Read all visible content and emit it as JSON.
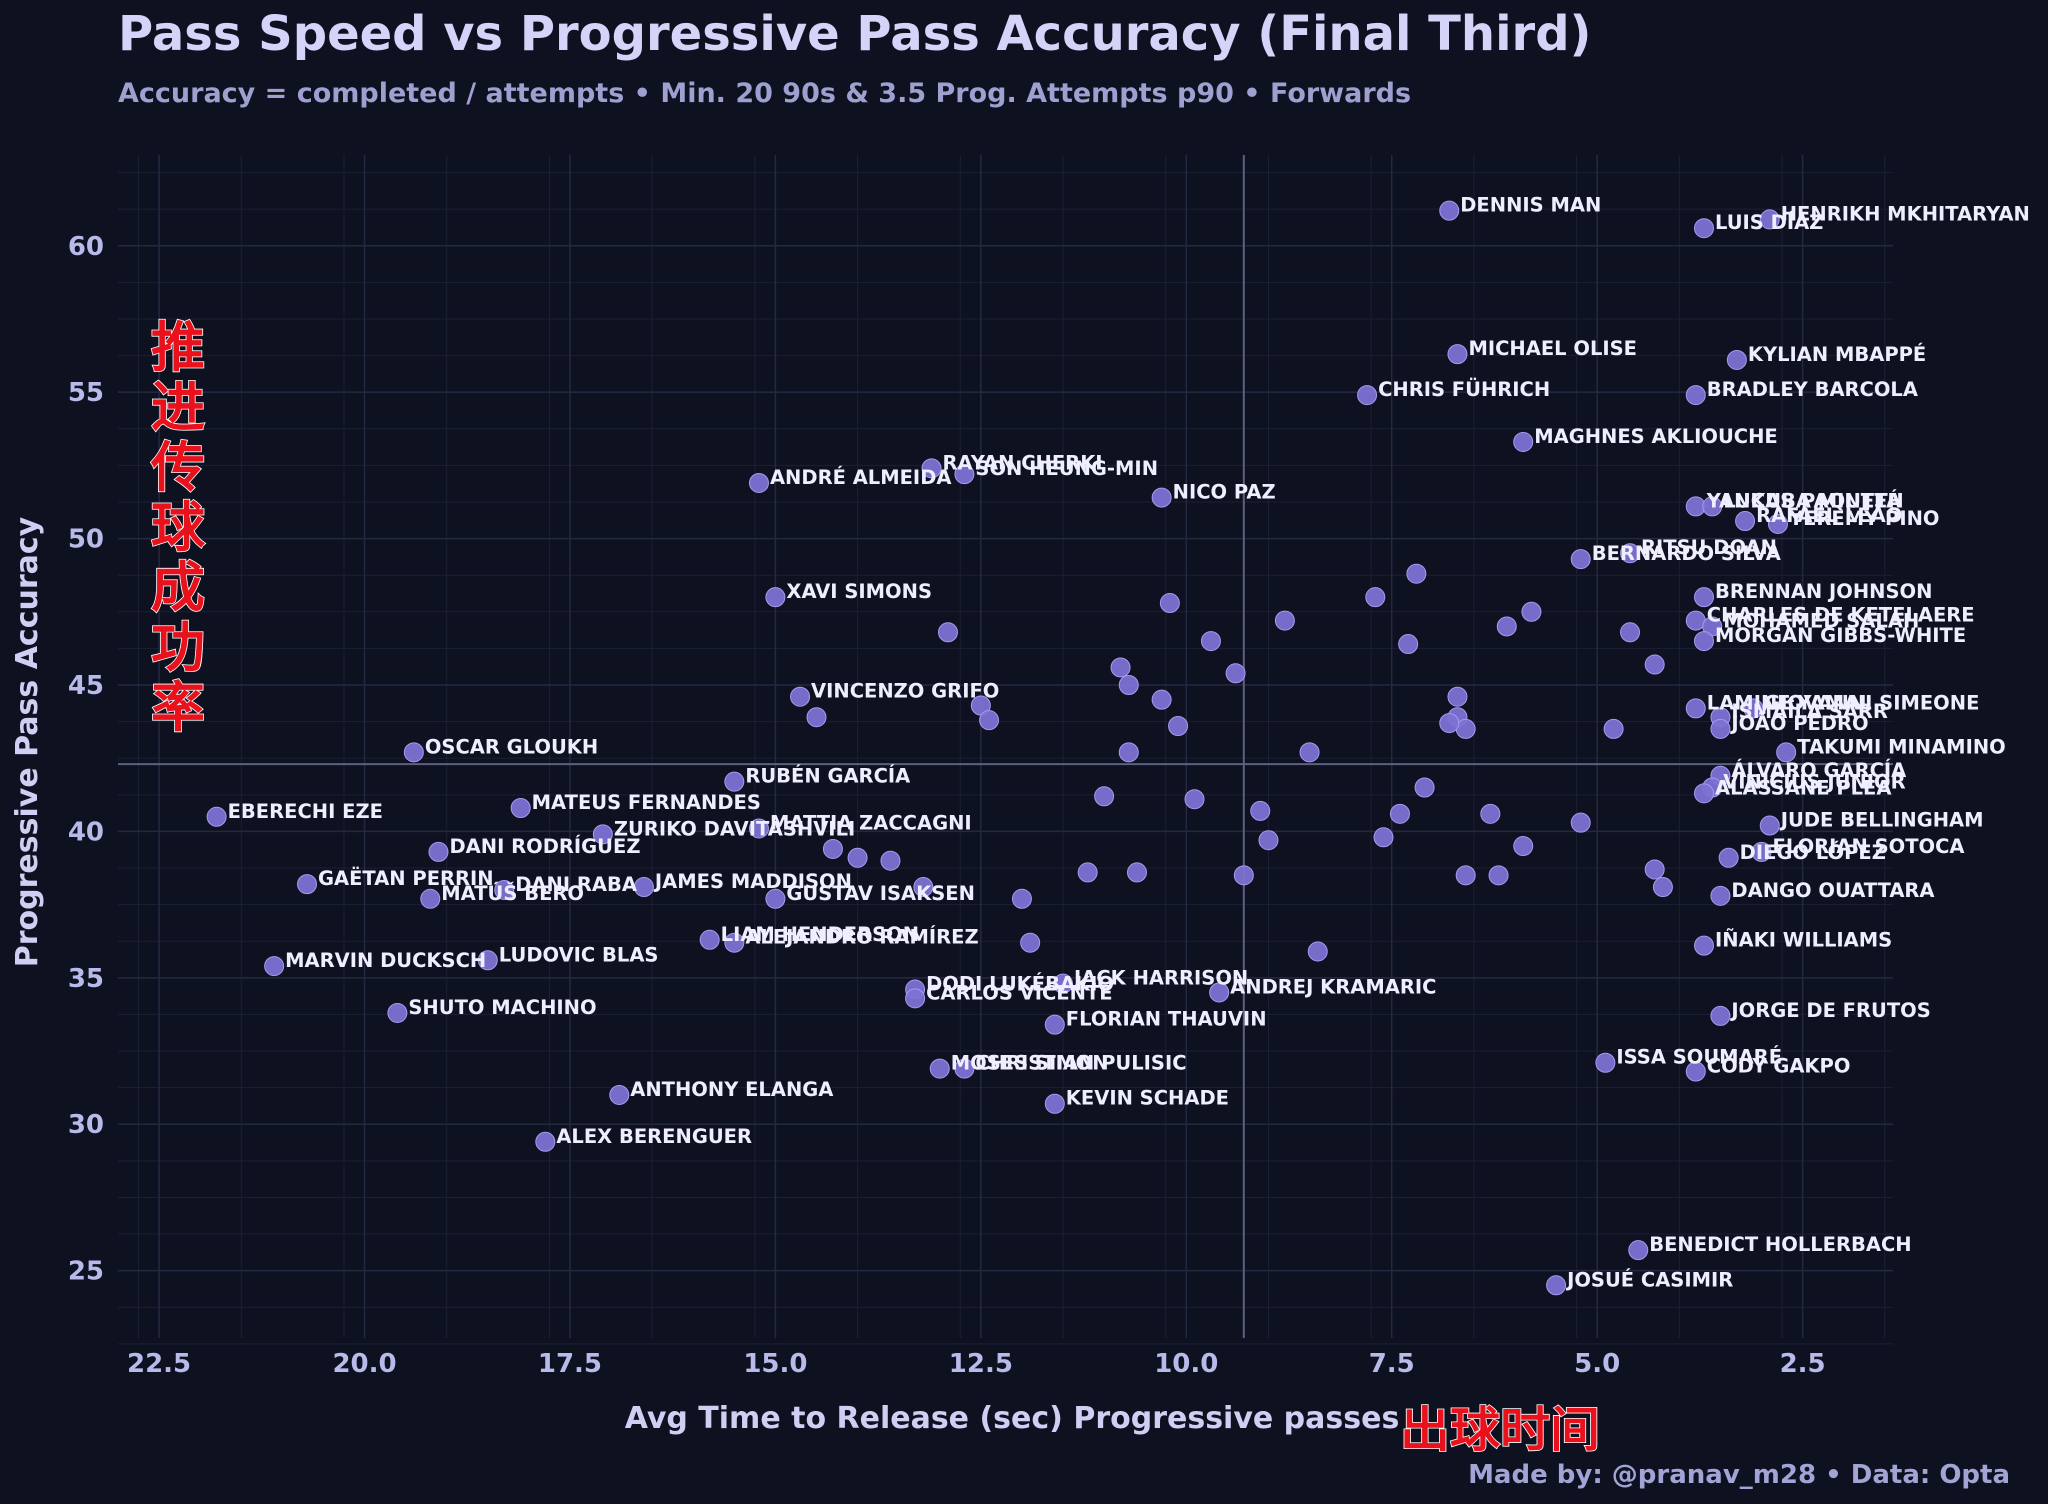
{
  "title": "Pass Speed vs Progressive Pass Accuracy (Final Third)",
  "subtitle": "Accuracy = completed / attempts • Min. 20 90s & 3.5 Prog. Attempts p90 • Forwards",
  "credit": "Made by: @pranav_m28  •  Data: Opta",
  "annotation_y": "推进传球成功率",
  "annotation_x": "出球时间",
  "colors": {
    "background": "#0e1120",
    "point": "#7d72d4",
    "reference_line": "#5d6180",
    "annotation": "#e8111c"
  },
  "chart_data": {
    "type": "scatter",
    "xlabel": "Avg Time to Release (sec) Progressive passes",
    "ylabel": "Progressive Pass Accuracy",
    "x_inverted": true,
    "xlim": [
      23.0,
      1.4
    ],
    "ylim": [
      22.7,
      63.1
    ],
    "xticks": [
      22.5,
      20.0,
      17.5,
      15.0,
      12.5,
      10.0,
      7.5,
      5.0,
      2.5
    ],
    "yticks": [
      25,
      30,
      35,
      40,
      45,
      50,
      55,
      60
    ],
    "xtick_labels": [
      "22.5",
      "20.0",
      "17.5",
      "15.0",
      "12.5",
      "10.0",
      "7.5",
      "5.0",
      "2.5"
    ],
    "ytick_labels": [
      "25",
      "30",
      "35",
      "40",
      "45",
      "50",
      "55",
      "60"
    ],
    "reference_lines": {
      "x": 9.3,
      "y": 42.3
    },
    "grid": true,
    "points": [
      {
        "x": 6.8,
        "y": 61.2,
        "label": "DENNIS MAN"
      },
      {
        "x": 2.9,
        "y": 60.9,
        "label": "HENRIKH MKHITARYAN"
      },
      {
        "x": 3.7,
        "y": 60.6,
        "label": "LUIS DÍAZ"
      },
      {
        "x": 6.7,
        "y": 56.3,
        "label": "MICHAEL OLISE"
      },
      {
        "x": 3.3,
        "y": 56.1,
        "label": "KYLIAN MBAPPÉ"
      },
      {
        "x": 7.8,
        "y": 54.9,
        "label": "CHRIS FÜHRICH"
      },
      {
        "x": 3.8,
        "y": 54.9,
        "label": "BRADLEY BARCOLA"
      },
      {
        "x": 5.9,
        "y": 53.3,
        "label": "MAGHNES AKLIOUCHE"
      },
      {
        "x": 13.1,
        "y": 52.4,
        "label": "RAYAN CHERKI"
      },
      {
        "x": 12.7,
        "y": 52.2,
        "label": "SON HEUNG-MIN"
      },
      {
        "x": 15.2,
        "y": 51.9,
        "label": "ANDRÉ ALMEIDA"
      },
      {
        "x": 10.3,
        "y": 51.4,
        "label": "NICO PAZ"
      },
      {
        "x": 3.8,
        "y": 51.1,
        "label": "YANKUBA MINTEH"
      },
      {
        "x": 3.6,
        "y": 51.1,
        "label": "LUCAS PAQUETÁ"
      },
      {
        "x": 3.2,
        "y": 50.6,
        "label": "RAFAEL LEÃO"
      },
      {
        "x": 2.8,
        "y": 50.5,
        "label": "YEREMY PINO"
      },
      {
        "x": 4.6,
        "y": 49.5,
        "label": "RITSU DOAN"
      },
      {
        "x": 5.2,
        "y": 49.3,
        "label": "BERNARDO SILVA"
      },
      {
        "x": 15.0,
        "y": 48.0,
        "label": "XAVI SIMONS"
      },
      {
        "x": 3.7,
        "y": 48.0,
        "label": "BRENNAN JOHNSON"
      },
      {
        "x": 3.8,
        "y": 47.2,
        "label": "CHARLES DE KETELAERE"
      },
      {
        "x": 3.6,
        "y": 47.0,
        "label": "MOHAMED SALAH"
      },
      {
        "x": 3.7,
        "y": 46.5,
        "label": "MORGAN GIBBS-WHITE"
      },
      {
        "x": 14.7,
        "y": 44.6,
        "label": "VINCENZO GRIFO"
      },
      {
        "x": 3.8,
        "y": 44.2,
        "label": "LAMINE YAMAL"
      },
      {
        "x": 3.1,
        "y": 44.2,
        "label": "GIOVANNI SIMEONE"
      },
      {
        "x": 3.5,
        "y": 43.9,
        "label": "ISMAÏLA SARR"
      },
      {
        "x": 3.5,
        "y": 43.5,
        "label": "JOÃO PEDRO"
      },
      {
        "x": 2.7,
        "y": 42.7,
        "label": "TAKUMI MINAMINO"
      },
      {
        "x": 19.4,
        "y": 42.7,
        "label": "OSCAR GLOUKH"
      },
      {
        "x": 3.5,
        "y": 41.9,
        "label": "ÁLVARO GARCÍA"
      },
      {
        "x": 3.6,
        "y": 41.5,
        "label": "VINÍCIUS JÚNIOR"
      },
      {
        "x": 3.7,
        "y": 41.3,
        "label": "ALASSANE PLÉA"
      },
      {
        "x": 15.5,
        "y": 41.7,
        "label": "RUBÉN GARCÍA"
      },
      {
        "x": 18.1,
        "y": 40.8,
        "label": "MATEUS FERNANDES"
      },
      {
        "x": 21.8,
        "y": 40.5,
        "label": "EBERECHI EZE"
      },
      {
        "x": 15.2,
        "y": 40.1,
        "label": "MATTIA ZACCAGNI"
      },
      {
        "x": 17.1,
        "y": 39.9,
        "label": "ZURIKO DAVITASHVILI"
      },
      {
        "x": 2.9,
        "y": 40.2,
        "label": "JUDE BELLINGHAM"
      },
      {
        "x": 19.1,
        "y": 39.3,
        "label": "DANI RODRÍGUEZ"
      },
      {
        "x": 3.0,
        "y": 39.3,
        "label": "FLORIAN SOTOCA"
      },
      {
        "x": 3.4,
        "y": 39.1,
        "label": "DIEGO LÓPEZ"
      },
      {
        "x": 20.7,
        "y": 38.2,
        "label": "GAËTAN PERRIN"
      },
      {
        "x": 18.3,
        "y": 38.0,
        "label": "DANI RABA"
      },
      {
        "x": 16.6,
        "y": 38.1,
        "label": "JAMES MADDISON"
      },
      {
        "x": 19.2,
        "y": 37.7,
        "label": "MATÚŠ BERO"
      },
      {
        "x": 15.0,
        "y": 37.7,
        "label": "GUSTAV ISAKSEN"
      },
      {
        "x": 3.5,
        "y": 37.8,
        "label": "DANGO OUATTARA"
      },
      {
        "x": 15.8,
        "y": 36.3,
        "label": "LIAM HENDERSON"
      },
      {
        "x": 15.5,
        "y": 36.2,
        "label": "ALEJANDRO RAMÍREZ"
      },
      {
        "x": 3.7,
        "y": 36.1,
        "label": "IÑAKI WILLIAMS"
      },
      {
        "x": 21.1,
        "y": 35.4,
        "label": "MARVIN DUCKSCH"
      },
      {
        "x": 18.5,
        "y": 35.6,
        "label": "LUDOVIC BLAS"
      },
      {
        "x": 11.5,
        "y": 34.8,
        "label": "JACK HARRISON"
      },
      {
        "x": 13.3,
        "y": 34.6,
        "label": "DODI LUKÉBAKIO"
      },
      {
        "x": 13.3,
        "y": 34.3,
        "label": "CARLOS VICENTE"
      },
      {
        "x": 9.6,
        "y": 34.5,
        "label": "ANDREJ KRAMARIC"
      },
      {
        "x": 19.6,
        "y": 33.8,
        "label": "SHUTO MACHINO"
      },
      {
        "x": 11.6,
        "y": 33.4,
        "label": "FLORIAN THAUVIN"
      },
      {
        "x": 3.5,
        "y": 33.7,
        "label": "JORGE DE FRUTOS"
      },
      {
        "x": 4.9,
        "y": 32.1,
        "label": "ISSA SOUMARÉ"
      },
      {
        "x": 3.8,
        "y": 31.8,
        "label": "CODY GAKPO"
      },
      {
        "x": 13.0,
        "y": 31.9,
        "label": "MOSES SIMON"
      },
      {
        "x": 12.7,
        "y": 31.9,
        "label": "CHRISTIAN PULISIC"
      },
      {
        "x": 16.9,
        "y": 31.0,
        "label": "ANTHONY ELANGA"
      },
      {
        "x": 11.6,
        "y": 30.7,
        "label": "KEVIN SCHADE"
      },
      {
        "x": 17.8,
        "y": 29.4,
        "label": "ALEX BERENGUER"
      },
      {
        "x": 4.5,
        "y": 25.7,
        "label": "BENEDICT HOLLERBACH"
      },
      {
        "x": 5.5,
        "y": 24.5,
        "label": "JOSUÉ CASIMIR"
      },
      {
        "x": 12.9,
        "y": 46.8,
        "label": ""
      },
      {
        "x": 12.5,
        "y": 44.3,
        "label": ""
      },
      {
        "x": 12.4,
        "y": 43.8,
        "label": ""
      },
      {
        "x": 14.5,
        "y": 43.9,
        "label": ""
      },
      {
        "x": 10.2,
        "y": 47.8,
        "label": ""
      },
      {
        "x": 9.7,
        "y": 46.5,
        "label": ""
      },
      {
        "x": 9.4,
        "y": 45.4,
        "label": ""
      },
      {
        "x": 10.8,
        "y": 45.6,
        "label": ""
      },
      {
        "x": 10.7,
        "y": 45.0,
        "label": ""
      },
      {
        "x": 10.3,
        "y": 44.5,
        "label": ""
      },
      {
        "x": 10.1,
        "y": 43.6,
        "label": ""
      },
      {
        "x": 10.7,
        "y": 42.7,
        "label": ""
      },
      {
        "x": 8.5,
        "y": 42.7,
        "label": ""
      },
      {
        "x": 8.8,
        "y": 47.2,
        "label": ""
      },
      {
        "x": 7.7,
        "y": 48.0,
        "label": ""
      },
      {
        "x": 7.2,
        "y": 48.8,
        "label": ""
      },
      {
        "x": 7.3,
        "y": 46.4,
        "label": ""
      },
      {
        "x": 6.1,
        "y": 47.0,
        "label": ""
      },
      {
        "x": 5.8,
        "y": 47.5,
        "label": ""
      },
      {
        "x": 4.6,
        "y": 46.8,
        "label": ""
      },
      {
        "x": 4.3,
        "y": 45.7,
        "label": ""
      },
      {
        "x": 6.7,
        "y": 44.6,
        "label": ""
      },
      {
        "x": 6.7,
        "y": 43.9,
        "label": ""
      },
      {
        "x": 6.6,
        "y": 43.5,
        "label": ""
      },
      {
        "x": 6.8,
        "y": 43.7,
        "label": ""
      },
      {
        "x": 4.8,
        "y": 43.5,
        "label": ""
      },
      {
        "x": 11.0,
        "y": 41.2,
        "label": ""
      },
      {
        "x": 9.9,
        "y": 41.1,
        "label": ""
      },
      {
        "x": 9.1,
        "y": 40.7,
        "label": ""
      },
      {
        "x": 9.0,
        "y": 39.7,
        "label": ""
      },
      {
        "x": 7.1,
        "y": 41.5,
        "label": ""
      },
      {
        "x": 7.4,
        "y": 40.6,
        "label": ""
      },
      {
        "x": 7.6,
        "y": 39.8,
        "label": ""
      },
      {
        "x": 6.3,
        "y": 40.6,
        "label": ""
      },
      {
        "x": 5.9,
        "y": 39.5,
        "label": ""
      },
      {
        "x": 5.2,
        "y": 40.3,
        "label": ""
      },
      {
        "x": 14.3,
        "y": 39.4,
        "label": ""
      },
      {
        "x": 14.0,
        "y": 39.1,
        "label": ""
      },
      {
        "x": 13.6,
        "y": 39.0,
        "label": ""
      },
      {
        "x": 13.2,
        "y": 38.1,
        "label": ""
      },
      {
        "x": 12.0,
        "y": 37.7,
        "label": ""
      },
      {
        "x": 11.9,
        "y": 36.2,
        "label": ""
      },
      {
        "x": 11.2,
        "y": 38.6,
        "label": ""
      },
      {
        "x": 10.6,
        "y": 38.6,
        "label": ""
      },
      {
        "x": 9.3,
        "y": 38.5,
        "label": ""
      },
      {
        "x": 6.6,
        "y": 38.5,
        "label": ""
      },
      {
        "x": 6.2,
        "y": 38.5,
        "label": ""
      },
      {
        "x": 4.3,
        "y": 38.7,
        "label": ""
      },
      {
        "x": 4.2,
        "y": 38.1,
        "label": ""
      },
      {
        "x": 8.4,
        "y": 35.9,
        "label": ""
      }
    ]
  }
}
